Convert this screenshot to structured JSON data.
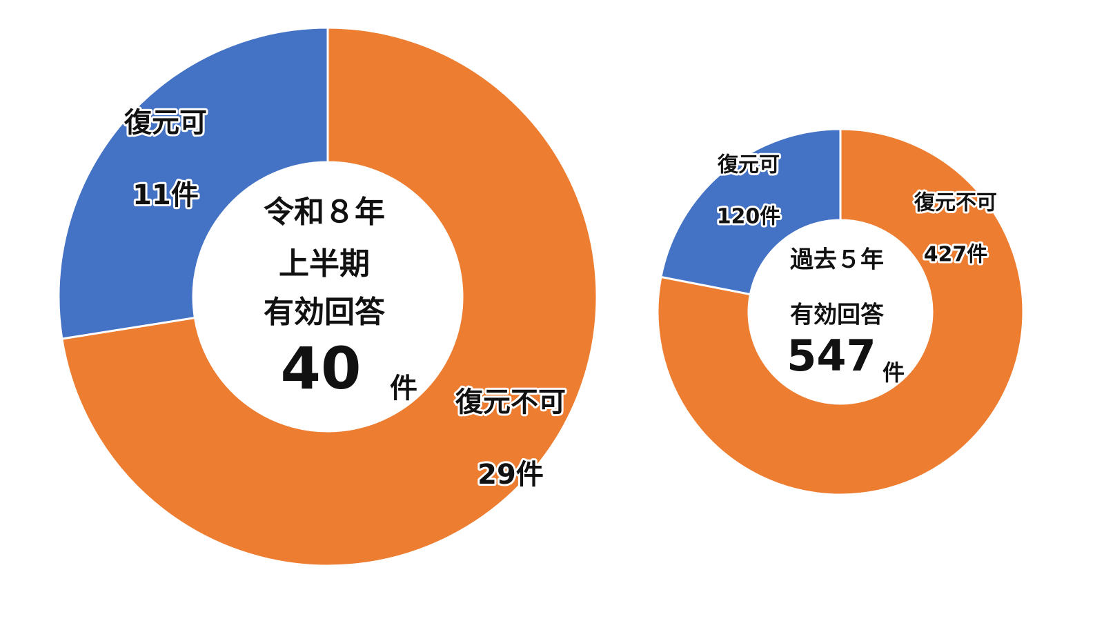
{
  "chart_data": [
    {
      "type": "donut",
      "categories": [
        "復元不可",
        "復元可"
      ],
      "values": [
        29,
        11
      ],
      "value_labels": [
        "29件",
        "11件"
      ],
      "colors": [
        "#ed7d31",
        "#4472c4"
      ],
      "center_text": [
        "令和８年",
        "上半期",
        "有効回答"
      ],
      "total": 40,
      "total_unit": "件"
    },
    {
      "type": "donut",
      "categories": [
        "復元不可",
        "復元可"
      ],
      "values": [
        427,
        120
      ],
      "value_labels": [
        "427件",
        "120件"
      ],
      "colors": [
        "#ed7d31",
        "#4472c4"
      ],
      "center_text": [
        "過去５年",
        "有効回答"
      ],
      "total": 547,
      "total_unit": "件"
    }
  ]
}
